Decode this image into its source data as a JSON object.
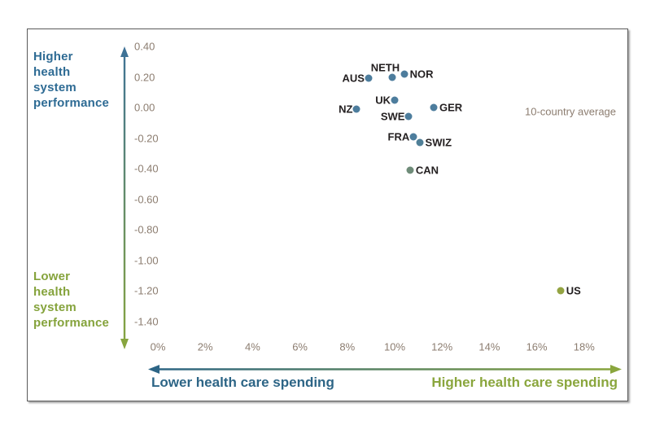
{
  "chart_data": {
    "type": "scatter",
    "title": "",
    "annotation": "10-country average",
    "x_axis": {
      "unit": "%",
      "range": [
        0,
        18
      ],
      "ticks": [
        {
          "label": "0%",
          "value": 0
        },
        {
          "label": "2%",
          "value": 2
        },
        {
          "label": "4%",
          "value": 4
        },
        {
          "label": "6%",
          "value": 6
        },
        {
          "label": "8%",
          "value": 8
        },
        {
          "label": "10%",
          "value": 10
        },
        {
          "label": "12%",
          "value": 12
        },
        {
          "label": "14%",
          "value": 14
        },
        {
          "label": "16%",
          "value": 16
        },
        {
          "label": "18%",
          "value": 18
        }
      ],
      "arrow_left_label": "Lower health care spending",
      "arrow_right_label": "Higher health care spending"
    },
    "y_axis": {
      "range": [
        -1.4,
        0.4
      ],
      "ticks": [
        {
          "label": "0.40",
          "value": 0.4
        },
        {
          "label": "0.20",
          "value": 0.2
        },
        {
          "label": "0.00",
          "value": 0.0
        },
        {
          "label": "-0.20",
          "value": -0.2
        },
        {
          "label": "-0.40",
          "value": -0.4
        },
        {
          "label": "-0.60",
          "value": -0.6
        },
        {
          "label": "-0.80",
          "value": -0.8
        },
        {
          "label": "-1.00",
          "value": -1.0
        },
        {
          "label": "-1.20",
          "value": -1.2
        },
        {
          "label": "-1.40",
          "value": -1.4
        }
      ],
      "arrow_top_label": "Higher\nhealth\nsystem\nperformance",
      "arrow_bottom_label": "Lower\nhealth\nsystem\nperformance"
    },
    "points": [
      {
        "label": "AUS",
        "x": 8.9,
        "y": 0.19,
        "label_side": "left",
        "color": "#4d7d9d"
      },
      {
        "label": "NETH",
        "x": 9.9,
        "y": 0.2,
        "label_side": "above",
        "color": "#4d7d9d"
      },
      {
        "label": "NOR",
        "x": 10.4,
        "y": 0.22,
        "label_side": "right",
        "color": "#4d7d9d"
      },
      {
        "label": "UK",
        "x": 10.0,
        "y": 0.05,
        "label_side": "left",
        "color": "#4d7d9d"
      },
      {
        "label": "NZ",
        "x": 8.4,
        "y": -0.01,
        "label_side": "left",
        "color": "#4d7d9d"
      },
      {
        "label": "GER",
        "x": 11.65,
        "y": 0.0,
        "label_side": "right",
        "color": "#4d7d9d"
      },
      {
        "label": "SWE",
        "x": 10.6,
        "y": -0.06,
        "label_side": "left",
        "color": "#4d7d9d"
      },
      {
        "label": "FRA",
        "x": 10.8,
        "y": -0.19,
        "label_side": "left",
        "color": "#4d7d9d"
      },
      {
        "label": "SWIZ",
        "x": 11.05,
        "y": -0.23,
        "label_side": "right",
        "color": "#4f7f97"
      },
      {
        "label": "CAN",
        "x": 10.65,
        "y": -0.41,
        "label_side": "right",
        "color": "#6f8c79"
      },
      {
        "label": "US",
        "x": 17.0,
        "y": -1.2,
        "label_side": "right",
        "color": "#94a442"
      }
    ],
    "colors": {
      "performance_high_text": "#2e6b94",
      "performance_low_text": "#85a33c",
      "spending_low_text": "#2d6586",
      "spending_high_text": "#8aa63d",
      "tick_text": "#8c7d70",
      "arrow_blue": "#3e7296",
      "arrow_green": "#87a53e",
      "dot_blue": "#4d7d9d",
      "dot_gray_green": "#6f8c79",
      "dot_olive": "#94a442"
    }
  }
}
